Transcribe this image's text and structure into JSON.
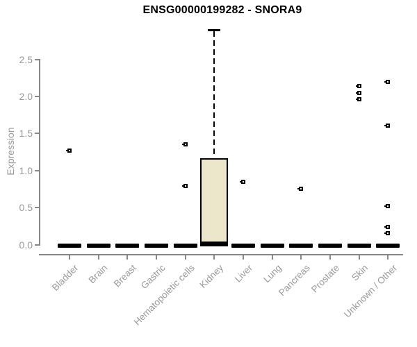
{
  "chart_data": {
    "type": "boxplot",
    "title": "ENSG00000199282 - SNORA9",
    "xlabel": "",
    "ylabel": "Expression",
    "ylim": [
      0,
      2.9
    ],
    "yticks": [
      "0.0",
      "0.5",
      "1.0",
      "1.5",
      "2.0",
      "2.5"
    ],
    "grid": false,
    "legend": "none",
    "colors": {
      "box_fill": "#ECE7CB",
      "box_stroke": "#000000",
      "axis_line": "#888888",
      "label_text": "#999999",
      "title_text": "#000000"
    },
    "categories": [
      "Bladder",
      "Brain",
      "Breast",
      "Gastric",
      "Hematopoietic cells",
      "Kidney",
      "Liver",
      "Lung",
      "Pancreas",
      "Prostate",
      "Skin",
      "Unknown / Other"
    ],
    "boxes": [
      {
        "category": "Bladder",
        "q1": 0,
        "median": 0,
        "q3": 0,
        "whisker_low": 0,
        "whisker_high": 0,
        "outliers": [
          1.27
        ]
      },
      {
        "category": "Brain",
        "q1": 0,
        "median": 0,
        "q3": 0,
        "whisker_low": 0,
        "whisker_high": 0,
        "outliers": []
      },
      {
        "category": "Breast",
        "q1": 0,
        "median": 0,
        "q3": 0,
        "whisker_low": 0,
        "whisker_high": 0,
        "outliers": []
      },
      {
        "category": "Gastric",
        "q1": 0,
        "median": 0,
        "q3": 0,
        "whisker_low": 0,
        "whisker_high": 0,
        "outliers": []
      },
      {
        "category": "Hematopoietic cells",
        "q1": 0,
        "median": 0,
        "q3": 0,
        "whisker_low": 0,
        "whisker_high": 0,
        "outliers": [
          1.35,
          0.79
        ]
      },
      {
        "category": "Kidney",
        "q1": 0,
        "median": 0.02,
        "q3": 1.17,
        "whisker_low": 0,
        "whisker_high": 2.9,
        "outliers": []
      },
      {
        "category": "Liver",
        "q1": 0,
        "median": 0,
        "q3": 0,
        "whisker_low": 0,
        "whisker_high": 0,
        "outliers": [
          0.85
        ]
      },
      {
        "category": "Lung",
        "q1": 0,
        "median": 0,
        "q3": 0,
        "whisker_low": 0,
        "whisker_high": 0,
        "outliers": []
      },
      {
        "category": "Pancreas",
        "q1": 0,
        "median": 0,
        "q3": 0,
        "whisker_low": 0,
        "whisker_high": 0,
        "outliers": [
          0.75
        ]
      },
      {
        "category": "Prostate",
        "q1": 0,
        "median": 0,
        "q3": 0,
        "whisker_low": 0,
        "whisker_high": 0,
        "outliers": []
      },
      {
        "category": "Skin",
        "q1": 0,
        "median": 0,
        "q3": 0,
        "whisker_low": 0,
        "whisker_high": 0,
        "outliers": [
          2.14,
          2.05,
          1.96
        ]
      },
      {
        "category": "Unknown / Other",
        "q1": 0,
        "median": 0,
        "q3": 0,
        "whisker_low": 0,
        "whisker_high": 0,
        "outliers": [
          2.2,
          1.61,
          0.52,
          0.24,
          0.15
        ]
      }
    ]
  }
}
